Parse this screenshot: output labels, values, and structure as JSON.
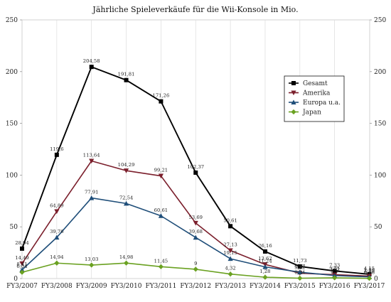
{
  "chart_data": {
    "type": "line",
    "title": "Jährliche Spieleverkäufe für die Wii-Konsole in Mio.",
    "xlabel": "",
    "ylabel": "",
    "ylim": [
      0,
      250
    ],
    "yticks": [
      0,
      50,
      100,
      150,
      200,
      250
    ],
    "y_axis_right_mirror": true,
    "grid": {
      "horizontal": false,
      "vertical": true
    },
    "legend": {
      "placement": "right",
      "entries": [
        "Gesamt",
        "Amerika",
        "Europa u.a.",
        "Japan"
      ]
    },
    "categories": [
      "FY3/2007",
      "FY3/2008",
      "FY3/2009",
      "FY3/2010",
      "FY3/2011",
      "FY3/2012",
      "FY3/2013",
      "FY3/2014",
      "FY3/2015",
      "FY3/2016",
      "FY3/2017"
    ],
    "series": [
      {
        "name": "Gesamt",
        "color": "#000000",
        "marker": "square",
        "values": [
          28.94,
          119.6,
          204.58,
          191.81,
          171.26,
          102.37,
          50.61,
          26.16,
          11.73,
          7.33,
          4.15
        ],
        "labels": [
          "28,94",
          "119,6",
          "204,58",
          "191,81",
          "171,26",
          "102,37",
          "50,61",
          "26,16",
          "11,73",
          "7,33",
          "4,15"
        ]
      },
      {
        "name": "Amerika",
        "color": "#7b1f2c",
        "marker": "triangle-down",
        "values": [
          14.49,
          64.89,
          113.64,
          104.29,
          99.21,
          53.69,
          27.13,
          13.62,
          5.22,
          3.71,
          2.39
        ],
        "labels": [
          "14,49",
          "64,89",
          "113,64",
          "104,29",
          "99,21",
          "53,69",
          "27,13",
          "13,62",
          "5,22",
          "3,71",
          "2,39"
        ]
      },
      {
        "name": "Europa u.a.",
        "color": "#1f4e79",
        "marker": "triangle-up",
        "values": [
          8.41,
          39.76,
          77.91,
          72.54,
          60.61,
          39.68,
          19.15,
          11.24,
          6.17,
          2.92,
          1.58
        ],
        "labels": [
          "8,41",
          "39,76",
          "77,91",
          "72,54",
          "60,61",
          "39,68",
          "19,15",
          "11,24",
          "6,17",
          "2,92",
          "1,58"
        ]
      },
      {
        "name": "Japan",
        "color": "#6aa121",
        "marker": "diamond",
        "values": [
          6.04,
          14.94,
          13.03,
          14.98,
          11.45,
          9.0,
          4.32,
          1.28,
          0.34,
          0.7,
          0.18
        ],
        "labels": [
          "6,04",
          "14,94",
          "13,03",
          "14,98",
          "11,45",
          "9",
          "4,32",
          "1,28",
          "0,34",
          "0,7",
          "0,18"
        ]
      }
    ]
  }
}
